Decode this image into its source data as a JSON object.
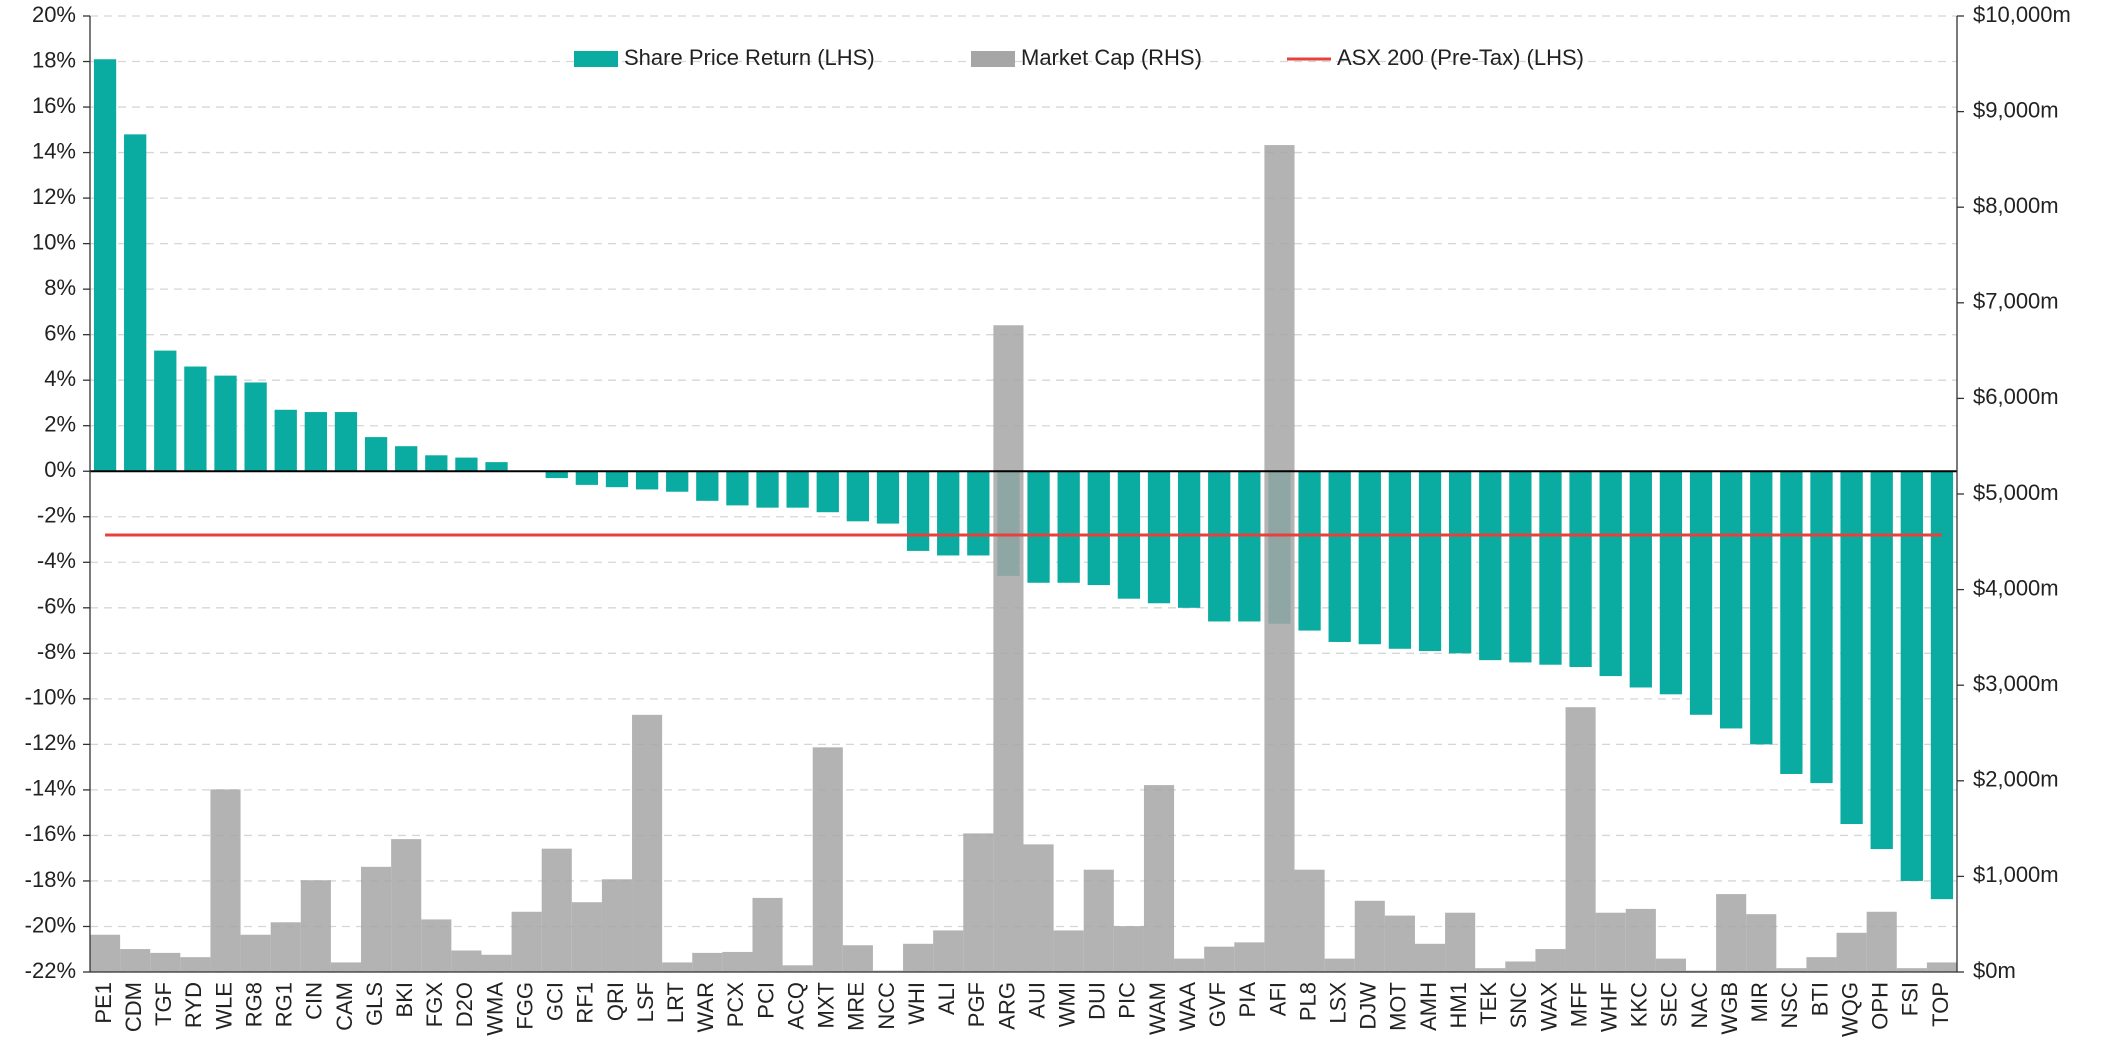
{
  "chart_data": {
    "type": "bar",
    "categories": [
      "PE1",
      "CDM",
      "TGF",
      "RYD",
      "WLE",
      "RG8",
      "RG1",
      "CIN",
      "CAM",
      "GLS",
      "BKI",
      "FGX",
      "D2O",
      "WMA",
      "FGG",
      "GCI",
      "RF1",
      "QRI",
      "LSF",
      "LRT",
      "WAR",
      "PCX",
      "PCI",
      "ACQ",
      "MXT",
      "MRE",
      "NCC",
      "WHI",
      "ALI",
      "PGF",
      "ARG",
      "AUI",
      "WMI",
      "DUI",
      "PIC",
      "WAM",
      "WAA",
      "GVF",
      "PIA",
      "AFI",
      "PL8",
      "LSX",
      "DJW",
      "MOT",
      "AMH",
      "HM1",
      "TEK",
      "SNC",
      "WAX",
      "MFF",
      "WHF",
      "KKC",
      "SEC",
      "NAC",
      "WGB",
      "MIR",
      "NSC",
      "BTI",
      "WQG",
      "OPH",
      "FSI",
      "TOP"
    ],
    "series": [
      {
        "name": "Share Price Return (LHS)",
        "color": "#0aaba0",
        "values": [
          18.1,
          14.8,
          5.3,
          4.6,
          4.2,
          3.9,
          2.7,
          2.6,
          2.6,
          1.5,
          1.1,
          0.7,
          0.6,
          0.4,
          0,
          -0.3,
          -0.6,
          -0.7,
          -0.8,
          -0.9,
          -1.3,
          -1.5,
          -1.6,
          -1.6,
          -1.8,
          -2.2,
          -2.3,
          -3.5,
          -3.7,
          -3.7,
          -4.6,
          -4.9,
          -4.9,
          -5.0,
          -5.6,
          -5.8,
          -6.0,
          -6.6,
          -6.6,
          -6.7,
          -7.0,
          -7.5,
          -7.6,
          -7.8,
          -7.9,
          -8.0,
          -8.3,
          -8.4,
          -8.5,
          -8.6,
          -9.0,
          -9.5,
          -9.8,
          -10.7,
          -11.3,
          -12.0,
          -13.3,
          -13.7,
          -15.5,
          -16.6,
          -18.0,
          -18.8
        ]
      },
      {
        "name": "Market Cap (RHS)",
        "color": "#a6a6a6",
        "axis": "y2",
        "values": [
          390,
          240,
          200,
          155,
          1910,
          390,
          520,
          960,
          100,
          1100,
          1390,
          550,
          225,
          180,
          630,
          1290,
          730,
          970,
          2690,
          100,
          200,
          210,
          775,
          70,
          2350,
          280,
          15,
          295,
          435,
          1450,
          6765,
          1335,
          435,
          1070,
          480,
          1955,
          140,
          265,
          310,
          8650,
          1070,
          140,
          745,
          590,
          295,
          620,
          40,
          110,
          240,
          2770,
          620,
          660,
          140,
          15,
          815,
          605,
          40,
          155,
          410,
          630,
          40,
          100
        ]
      }
    ],
    "reference_line": {
      "name": "ASX 200 (Pre-Tax) (LHS)",
      "color": "#e8413c",
      "value": -2.8
    },
    "ylim": [
      -22,
      20
    ],
    "yticks": [
      {
        "value": -22,
        "label": "-22%"
      },
      {
        "value": -20,
        "label": "-20%"
      },
      {
        "value": -18,
        "label": "-18%"
      },
      {
        "value": -16,
        "label": "-16%"
      },
      {
        "value": -14,
        "label": "-14%"
      },
      {
        "value": -12,
        "label": "-12%"
      },
      {
        "value": -10,
        "label": "-10%"
      },
      {
        "value": -8,
        "label": "-8%"
      },
      {
        "value": -6,
        "label": "-6%"
      },
      {
        "value": -4,
        "label": "-4%"
      },
      {
        "value": -2,
        "label": "-2%"
      },
      {
        "value": 0,
        "label": "0%"
      },
      {
        "value": 2,
        "label": "2%"
      },
      {
        "value": 4,
        "label": "4%"
      },
      {
        "value": 6,
        "label": "6%"
      },
      {
        "value": 8,
        "label": "8%"
      },
      {
        "value": 10,
        "label": "10%"
      },
      {
        "value": 12,
        "label": "12%"
      },
      {
        "value": 14,
        "label": "14%"
      },
      {
        "value": 16,
        "label": "16%"
      },
      {
        "value": 18,
        "label": "18%"
      },
      {
        "value": 20,
        "label": "20%"
      }
    ],
    "y2lim": [
      0,
      10000
    ],
    "y2ticks": [
      {
        "value": 0,
        "label": "$0m"
      },
      {
        "value": 1000,
        "label": "$1,000m"
      },
      {
        "value": 2000,
        "label": "$2,000m"
      },
      {
        "value": 3000,
        "label": "$3,000m"
      },
      {
        "value": 4000,
        "label": "$4,000m"
      },
      {
        "value": 5000,
        "label": "$5,000m"
      },
      {
        "value": 6000,
        "label": "$6,000m"
      },
      {
        "value": 7000,
        "label": "$7,000m"
      },
      {
        "value": 8000,
        "label": "$8,000m"
      },
      {
        "value": 9000,
        "label": "$9,000m"
      },
      {
        "value": 10000,
        "label": "$10,000m"
      }
    ],
    "grid": true,
    "legend": "top"
  }
}
